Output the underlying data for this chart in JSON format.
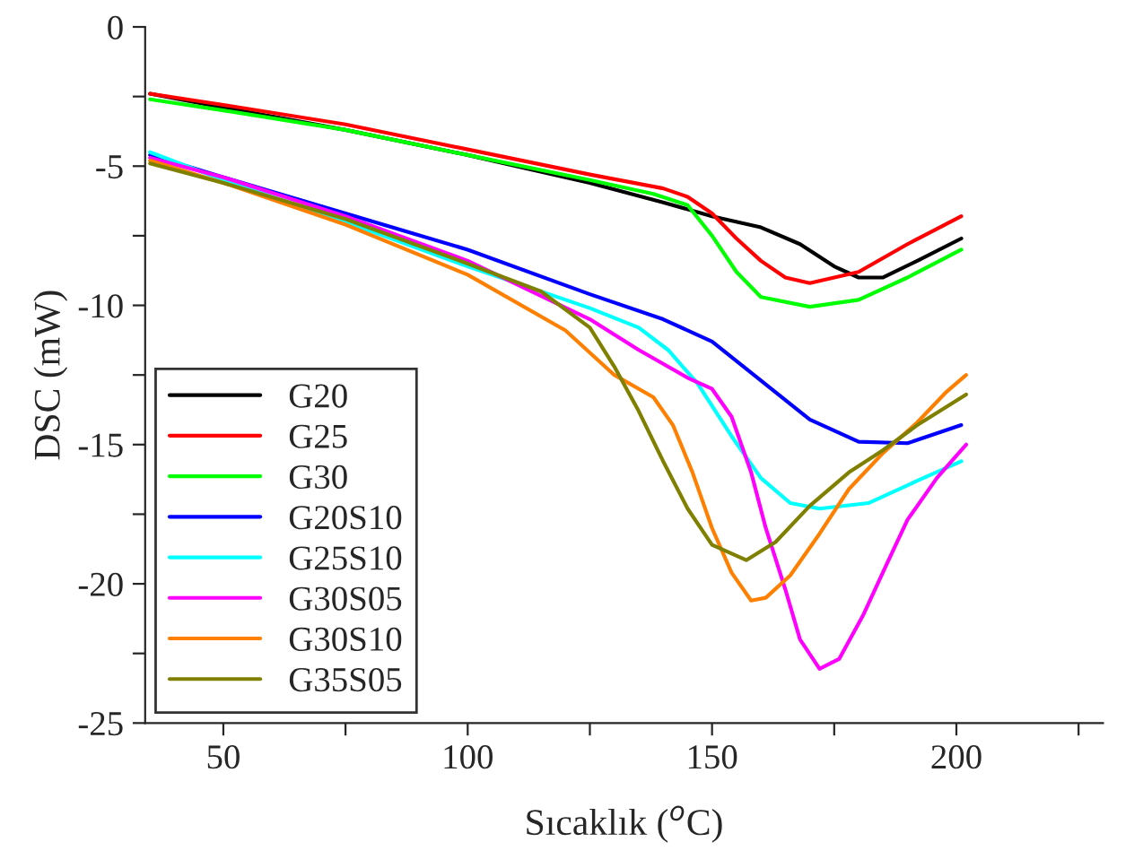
{
  "chart_data": {
    "type": "line",
    "xlabel": "Sıcaklık ($^{o}$C)",
    "ylabel": "DSC (mW)",
    "xlim": [
      34,
      230
    ],
    "ylim": [
      -25,
      0
    ],
    "xticks": [
      50,
      {
        "value": 75,
        "label": null
      },
      100,
      {
        "value": 125,
        "label": null
      },
      150,
      {
        "value": 175,
        "label": null
      },
      200,
      {
        "value": 225,
        "label": null
      }
    ],
    "yticks": [
      -25,
      {
        "value": -22.5,
        "label": null
      },
      -20,
      {
        "value": -17.5,
        "label": null
      },
      -15,
      {
        "value": -12.5,
        "label": null
      },
      -10,
      {
        "value": -7.5,
        "label": null
      },
      -5,
      {
        "value": -2.5,
        "label": null
      },
      0
    ],
    "grid": false,
    "legend": "bottom left",
    "line_style": "solid",
    "marker": "none",
    "series": [
      {
        "name": "G20",
        "color": "#000000",
        "x": [
          35,
          50,
          75,
          100,
          125,
          140,
          150,
          160,
          168,
          175,
          180,
          185,
          192,
          201
        ],
        "values": [
          -2.4,
          -2.9,
          -3.7,
          -4.6,
          -5.6,
          -6.3,
          -6.8,
          -7.2,
          -7.8,
          -8.6,
          -9.0,
          -9.0,
          -8.4,
          -7.6
        ]
      },
      {
        "name": "G25",
        "color": "#ff0000",
        "x": [
          35,
          50,
          75,
          100,
          125,
          140,
          145,
          150,
          155,
          160,
          165,
          170,
          180,
          190,
          201
        ],
        "values": [
          -2.4,
          -2.8,
          -3.5,
          -4.4,
          -5.3,
          -5.8,
          -6.1,
          -6.7,
          -7.6,
          -8.4,
          -9.0,
          -9.2,
          -8.8,
          -7.8,
          -6.8
        ]
      },
      {
        "name": "G30",
        "color": "#00ff00",
        "x": [
          35,
          50,
          75,
          100,
          125,
          138,
          145,
          150,
          155,
          160,
          170,
          180,
          190,
          201
        ],
        "values": [
          -2.6,
          -3.0,
          -3.7,
          -4.6,
          -5.5,
          -6.0,
          -6.4,
          -7.5,
          -8.8,
          -9.7,
          -10.05,
          -9.8,
          -9.0,
          -8.0
        ]
      },
      {
        "name": "G20S10",
        "color": "#0000ff",
        "x": [
          35,
          50,
          75,
          100,
          125,
          140,
          150,
          160,
          170,
          180,
          190,
          201
        ],
        "values": [
          -4.6,
          -5.4,
          -6.7,
          -8.0,
          -9.6,
          -10.5,
          -11.3,
          -12.7,
          -14.1,
          -14.9,
          -14.95,
          -14.3
        ]
      },
      {
        "name": "G25S10",
        "color": "#00ffff",
        "x": [
          35,
          50,
          75,
          100,
          125,
          135,
          141,
          147,
          154,
          160,
          166,
          172,
          182,
          192,
          201
        ],
        "values": [
          -4.5,
          -5.5,
          -7.0,
          -8.6,
          -10.1,
          -10.8,
          -11.6,
          -12.8,
          -14.7,
          -16.2,
          -17.1,
          -17.3,
          -17.1,
          -16.3,
          -15.6
        ]
      },
      {
        "name": "G30S05",
        "color": "#ff00ff",
        "x": [
          35,
          50,
          75,
          100,
          125,
          135,
          145,
          150,
          154,
          158,
          161,
          165,
          168,
          172,
          176,
          181,
          186,
          190,
          196,
          202
        ],
        "values": [
          -4.7,
          -5.4,
          -6.8,
          -8.4,
          -10.5,
          -11.6,
          -12.6,
          -13.0,
          -14.0,
          -16.0,
          -18.0,
          -20.2,
          -22.0,
          -23.05,
          -22.7,
          -21.1,
          -19.2,
          -17.7,
          -16.2,
          -15.0
        ]
      },
      {
        "name": "G30S10",
        "color": "#ff8000",
        "x": [
          35,
          50,
          75,
          100,
          120,
          130,
          138,
          142,
          146,
          150,
          154,
          158,
          161,
          166,
          172,
          178,
          185,
          192,
          198,
          202
        ],
        "values": [
          -4.8,
          -5.6,
          -7.1,
          -8.9,
          -10.9,
          -12.5,
          -13.3,
          -14.3,
          -16.0,
          -18.0,
          -19.6,
          -20.6,
          -20.5,
          -19.7,
          -18.2,
          -16.6,
          -15.3,
          -14.2,
          -13.1,
          -12.5
        ]
      },
      {
        "name": "G35S05",
        "color": "#808000",
        "x": [
          35,
          50,
          75,
          100,
          115,
          125,
          130,
          135,
          140,
          145,
          150,
          157,
          163,
          170,
          178,
          185,
          192,
          202
        ],
        "values": [
          -4.9,
          -5.6,
          -6.9,
          -8.5,
          -9.5,
          -10.8,
          -12.2,
          -13.8,
          -15.6,
          -17.3,
          -18.6,
          -19.15,
          -18.5,
          -17.2,
          -16.0,
          -15.2,
          -14.3,
          -13.2
        ]
      }
    ]
  }
}
